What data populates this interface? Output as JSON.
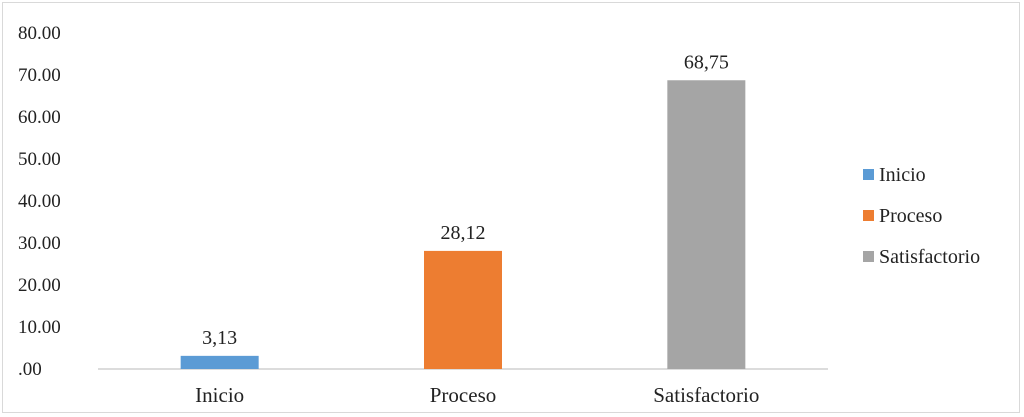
{
  "chart_data": {
    "type": "bar",
    "categories": [
      "Inicio",
      "Proceso",
      "Satisfactorio"
    ],
    "values": [
      3.13,
      28.12,
      68.75
    ],
    "data_labels": [
      "3,13",
      "28,12",
      "68,75"
    ],
    "colors": [
      "#5b9bd5",
      "#ed7d31",
      "#a5a5a5"
    ],
    "ylim": [
      0,
      80
    ],
    "yticks": [
      0,
      10,
      20,
      30,
      40,
      50,
      60,
      70,
      80
    ],
    "ytick_labels": [
      ".00",
      "10.00",
      "20.00",
      "30.00",
      "40.00",
      "50.00",
      "60.00",
      "70.00",
      "80.00"
    ],
    "grid": false,
    "legend": {
      "placement": "right",
      "entries": [
        "Inicio",
        "Proceso",
        "Satisfactorio"
      ]
    }
  }
}
